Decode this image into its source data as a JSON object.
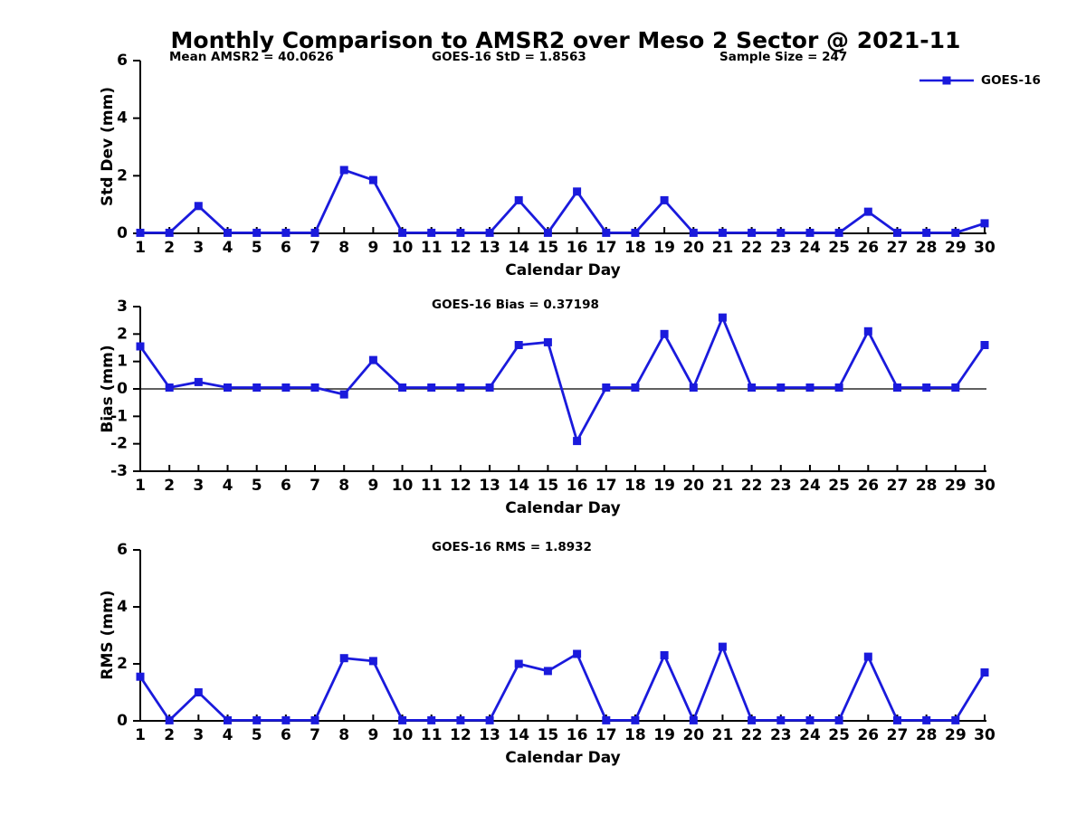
{
  "title": "Monthly Comparison to AMSR2 over Meso 2 Sector @ 2021-11",
  "xlabel": "Calendar Day",
  "line_color": "#1a1adc",
  "axis_color": "#000000",
  "legend": {
    "label": "GOES-16",
    "color": "#1a1adc",
    "marker": "filled-square"
  },
  "annotations_top": [
    {
      "text": "Mean AMSR2 = 40.0626"
    },
    {
      "text": "GOES-16 StD = 1.8563"
    },
    {
      "text": "Sample Size = 247"
    }
  ],
  "chart_data": [
    {
      "type": "line",
      "name": "std-dev-vs-day",
      "ylabel": "Std Dev (mm)",
      "ylim": [
        0,
        6
      ],
      "yticks": [
        0,
        2,
        4,
        6
      ],
      "zero_line": false,
      "annotation": "",
      "legend_position": "upper-right-outside",
      "grid": false,
      "x": [
        1,
        2,
        3,
        4,
        5,
        6,
        7,
        8,
        9,
        10,
        11,
        12,
        13,
        14,
        15,
        16,
        17,
        18,
        19,
        20,
        21,
        22,
        23,
        24,
        25,
        26,
        27,
        28,
        29,
        30
      ],
      "series": [
        {
          "name": "GOES-16",
          "values": [
            0.02,
            0.02,
            0.95,
            0.02,
            0.02,
            0.02,
            0.02,
            2.2,
            1.85,
            0.02,
            0.02,
            0.02,
            0.02,
            1.15,
            0.02,
            1.45,
            0.02,
            0.02,
            1.15,
            0.02,
            0.02,
            0.02,
            0.02,
            0.02,
            0.02,
            0.75,
            0.02,
            0.02,
            0.02,
            0.35
          ]
        }
      ]
    },
    {
      "type": "line",
      "name": "bias-vs-day",
      "ylabel": "Bias (mm)",
      "ylim": [
        -3,
        3
      ],
      "yticks": [
        -3,
        -2,
        -1,
        0,
        1,
        2,
        3
      ],
      "zero_line": true,
      "annotation": "GOES-16 Bias = 0.37198",
      "grid": false,
      "x": [
        1,
        2,
        3,
        4,
        5,
        6,
        7,
        8,
        9,
        10,
        11,
        12,
        13,
        14,
        15,
        16,
        17,
        18,
        19,
        20,
        21,
        22,
        23,
        24,
        25,
        26,
        27,
        28,
        29,
        30
      ],
      "series": [
        {
          "name": "GOES-16",
          "values": [
            1.55,
            0.05,
            0.25,
            0.05,
            0.05,
            0.05,
            0.05,
            -0.2,
            1.05,
            0.05,
            0.05,
            0.05,
            0.05,
            1.6,
            1.7,
            -1.9,
            0.05,
            0.05,
            2.0,
            0.05,
            2.6,
            0.05,
            0.05,
            0.05,
            0.05,
            2.1,
            0.05,
            0.05,
            0.05,
            1.6
          ]
        }
      ]
    },
    {
      "type": "line",
      "name": "rms-vs-day",
      "ylabel": "RMS (mm)",
      "ylim": [
        0,
        6
      ],
      "yticks": [
        0,
        2,
        4,
        6
      ],
      "zero_line": false,
      "annotation": "GOES-16 RMS = 1.8932",
      "grid": false,
      "x": [
        1,
        2,
        3,
        4,
        5,
        6,
        7,
        8,
        9,
        10,
        11,
        12,
        13,
        14,
        15,
        16,
        17,
        18,
        19,
        20,
        21,
        22,
        23,
        24,
        25,
        26,
        27,
        28,
        29,
        30
      ],
      "series": [
        {
          "name": "GOES-16",
          "values": [
            1.55,
            0.02,
            1.0,
            0.02,
            0.02,
            0.02,
            0.02,
            2.2,
            2.1,
            0.02,
            0.02,
            0.02,
            0.02,
            2.0,
            1.75,
            2.35,
            0.02,
            0.02,
            2.3,
            0.02,
            2.6,
            0.02,
            0.02,
            0.02,
            0.02,
            2.25,
            0.02,
            0.02,
            0.02,
            1.7
          ]
        }
      ]
    }
  ]
}
